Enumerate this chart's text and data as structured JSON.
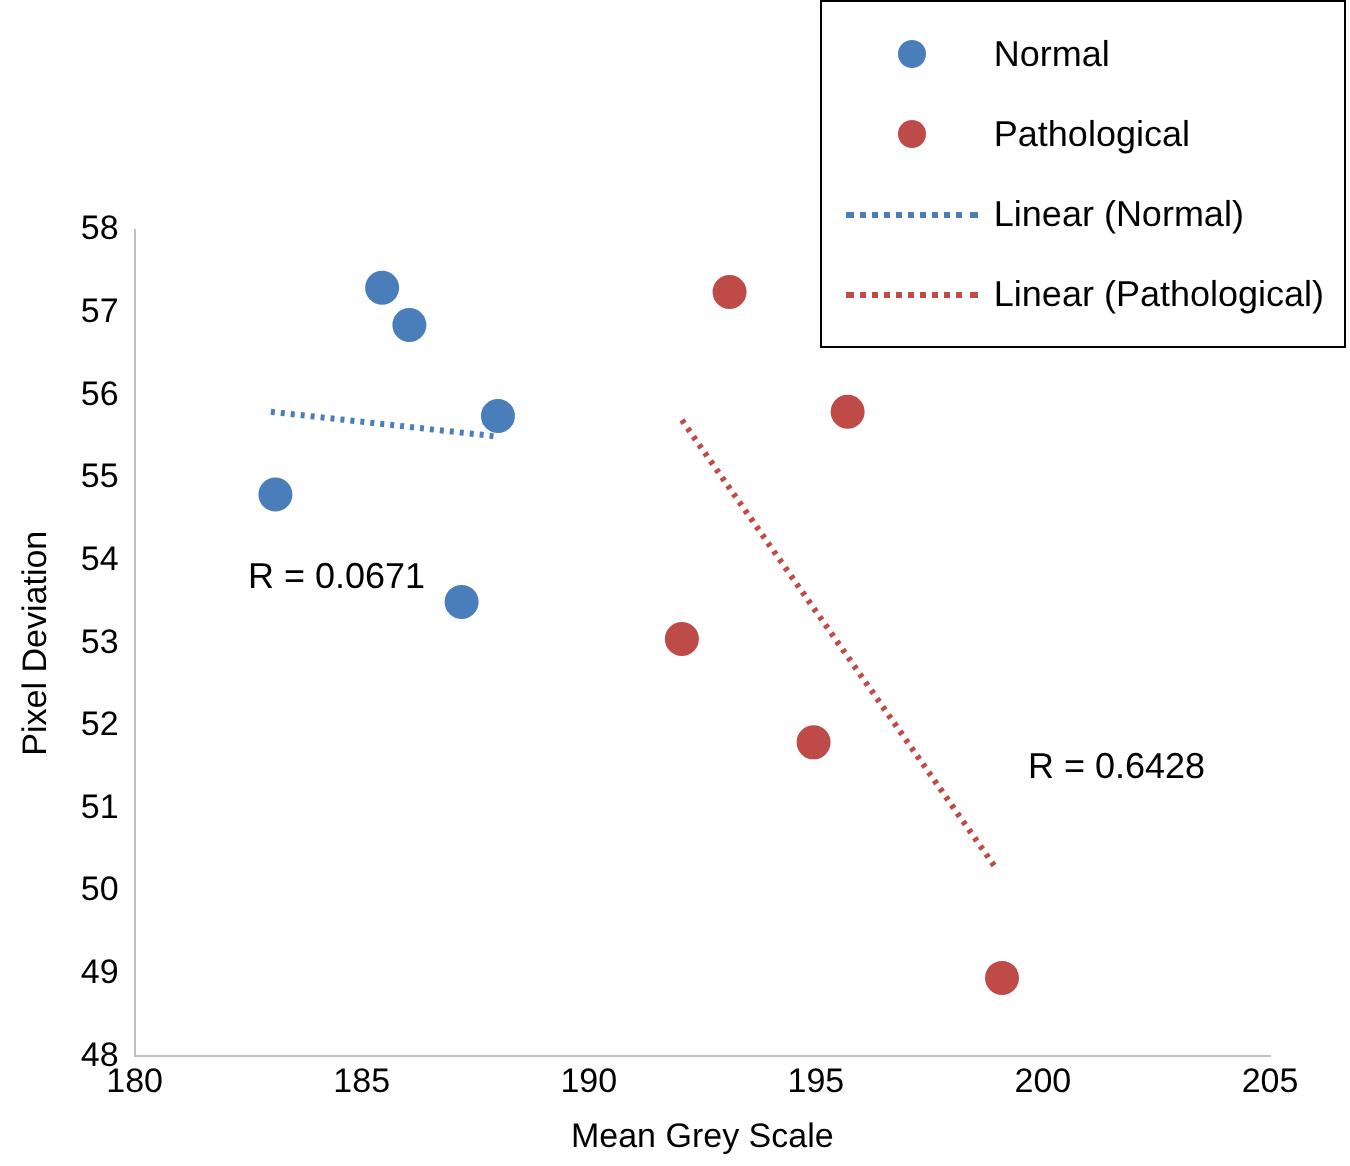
{
  "chart_data": {
    "type": "scatter",
    "xlabel": "Mean Grey Scale",
    "ylabel": "Pixel Deviation",
    "xlim": [
      180,
      205
    ],
    "xticks": [
      180,
      185,
      190,
      195,
      200,
      205
    ],
    "ylim": [
      48,
      58
    ],
    "yticks": [
      48,
      49,
      50,
      51,
      52,
      53,
      54,
      55,
      56,
      57,
      58
    ],
    "grid": false,
    "legend": "top right",
    "marker": "circle",
    "annotations": [
      "R = 0.0671",
      "R = 0.6428"
    ],
    "series": [
      {
        "name": "Normal",
        "color": "#4a7ebb",
        "x": [
          183.1,
          185.45,
          186.05,
          188.0,
          187.2
        ],
        "values": [
          54.8,
          57.3,
          56.85,
          55.75,
          53.5
        ]
      },
      {
        "name": "Pathological",
        "color": "#be4b48",
        "x": [
          193.1,
          195.7,
          192.05,
          194.95,
          199.1
        ],
        "values": [
          57.25,
          55.8,
          53.05,
          51.8,
          48.95
        ]
      },
      {
        "name": "Linear (Normal)",
        "type": "line",
        "color": "#4a7ebb",
        "line_style": "dotted",
        "marker": "none",
        "x": [
          183.0,
          188.0
        ],
        "values": [
          55.8,
          55.5
        ]
      },
      {
        "name": "Linear (Pathological)",
        "type": "line",
        "color": "#be4b48",
        "line_style": "dotted",
        "marker": "none",
        "x": [
          192.05,
          199.0
        ],
        "values": [
          55.7,
          50.25
        ]
      }
    ]
  }
}
